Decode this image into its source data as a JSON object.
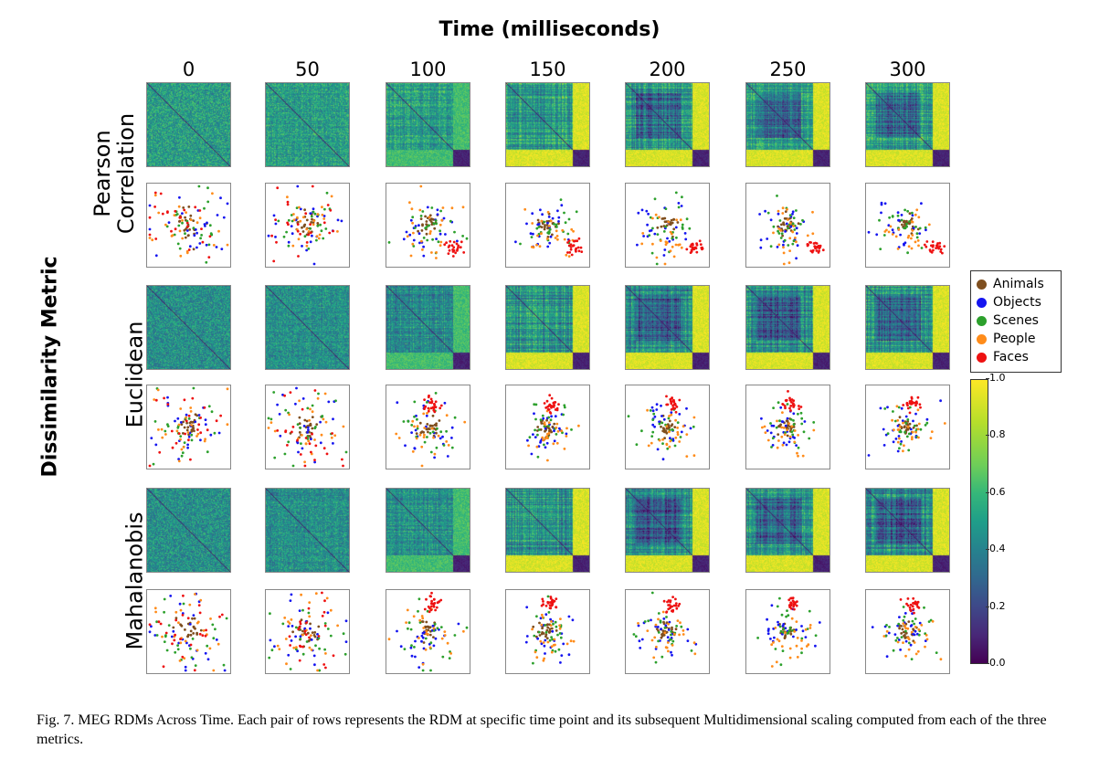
{
  "figure": {
    "x_title": "Time (milliseconds)",
    "y_title": "Dissimilarity Metric",
    "caption": "Fig. 7.  MEG RDMs Across Time. Each pair of rows represents the RDM at specific time point and its subsequent Multidimensional scaling computed from each of the three metrics."
  },
  "chart_data": {
    "type": "heatmap",
    "panels": "RDM heatmap plus MDS scatter for each metric and time point",
    "time_points": [
      "0",
      "50",
      "100",
      "150",
      "200",
      "250",
      "300"
    ],
    "metrics": [
      {
        "label_lines": [
          "Pearson",
          "Correlation"
        ]
      },
      {
        "label_lines": [
          "Euclidean"
        ]
      },
      {
        "label_lines": [
          "Mahalanobis"
        ]
      }
    ],
    "legend": {
      "placement": "right",
      "entries": [
        {
          "name": "Animals",
          "color": "#7f4f1f"
        },
        {
          "name": "Objects",
          "color": "#1515f0"
        },
        {
          "name": "Scenes",
          "color": "#2ca02c"
        },
        {
          "name": "People",
          "color": "#ff8c1a"
        },
        {
          "name": "Faces",
          "color": "#ee1111"
        }
      ]
    },
    "colorbar": {
      "colormap": "viridis",
      "range": [
        0.0,
        1.0
      ],
      "ticks": [
        "0.0",
        "0.2",
        "0.4",
        "0.6",
        "0.8",
        "1.0"
      ]
    }
  }
}
